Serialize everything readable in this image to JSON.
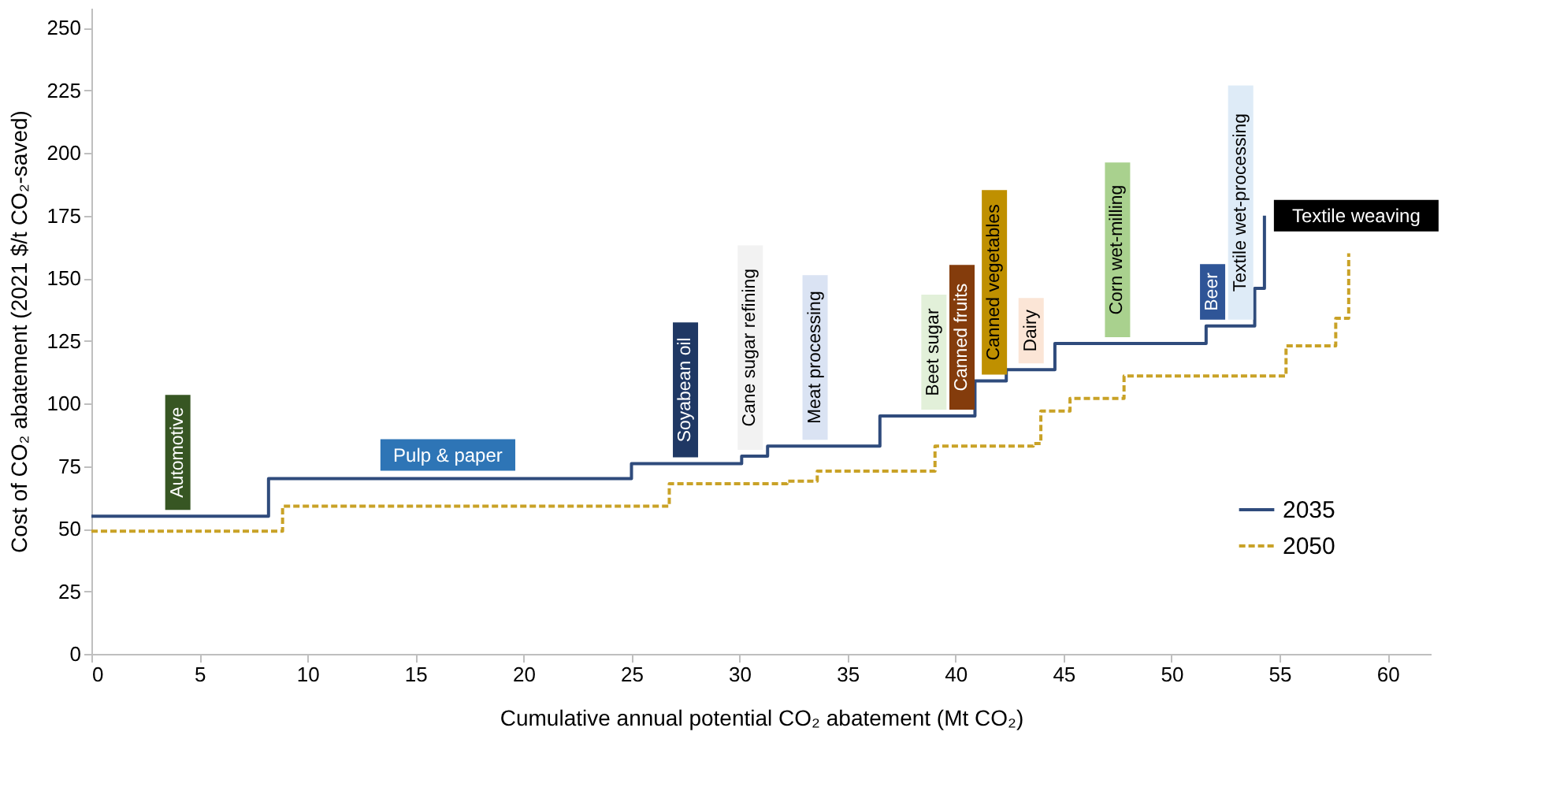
{
  "chart_data": {
    "type": "step",
    "xlabel": "Cumulative annual potential CO₂ abatement (Mt CO₂)",
    "ylabel": "Cost of CO₂ abatement (2021 $/t CO₂-saved)",
    "xlim": [
      0,
      62
    ],
    "xticks": [
      0,
      5,
      10,
      15,
      20,
      25,
      30,
      35,
      40,
      45,
      50,
      55,
      60
    ],
    "ylim": [
      0,
      258
    ],
    "yticks": [
      0,
      25,
      50,
      75,
      100,
      125,
      150,
      175,
      200,
      225,
      250
    ],
    "grid": false,
    "legend": "bottom right",
    "series": [
      {
        "name": "2035",
        "color": "#2f4b7c",
        "line_style": "solid",
        "x": [
          0,
          8.2,
          25,
          30.1,
          31.3,
          36.5,
          40.9,
          42.35,
          44.6,
          51.6,
          53.85,
          54.3
        ],
        "values": [
          55,
          70,
          76,
          79,
          83,
          95,
          109,
          113.5,
          124,
          131,
          146,
          175
        ]
      },
      {
        "name": "2050",
        "color": "#c9a227",
        "line_style": "dashed",
        "x": [
          0,
          8.85,
          26.75,
          32.2,
          33.6,
          39.05,
          43.6,
          43.95,
          45.3,
          47.8,
          55.3,
          57.6,
          58.2
        ],
        "values": [
          49,
          59,
          68,
          69,
          73,
          83,
          84,
          97,
          102,
          111,
          123,
          134,
          160
        ]
      }
    ],
    "annotations": [
      {
        "text": "Automotive",
        "x": 4,
        "y": 55
      },
      {
        "text": "Pulp & paper",
        "x": 16.5,
        "y": 70
      },
      {
        "text": "Soyabean oil",
        "x": 27.5,
        "y": 76
      },
      {
        "text": "Cane sugar refining",
        "x": 30.5,
        "y": 79
      },
      {
        "text": "Meat processing",
        "x": 33.5,
        "y": 83
      },
      {
        "text": "Beet sugar",
        "x": 39,
        "y": 95
      },
      {
        "text": "Canned fruits",
        "x": 40.3,
        "y": 95
      },
      {
        "text": "Canned vegetables",
        "x": 41.8,
        "y": 109
      },
      {
        "text": "Dairy",
        "x": 43.5,
        "y": 113.5
      },
      {
        "text": "Corn wet-milling",
        "x": 47.5,
        "y": 124
      },
      {
        "text": "Beer",
        "x": 51.9,
        "y": 131
      },
      {
        "text": "Textile wet-processing",
        "x": 53.2,
        "y": 131
      },
      {
        "text": "Textile weaving",
        "x": 54.3,
        "y": 175
      }
    ]
  }
}
